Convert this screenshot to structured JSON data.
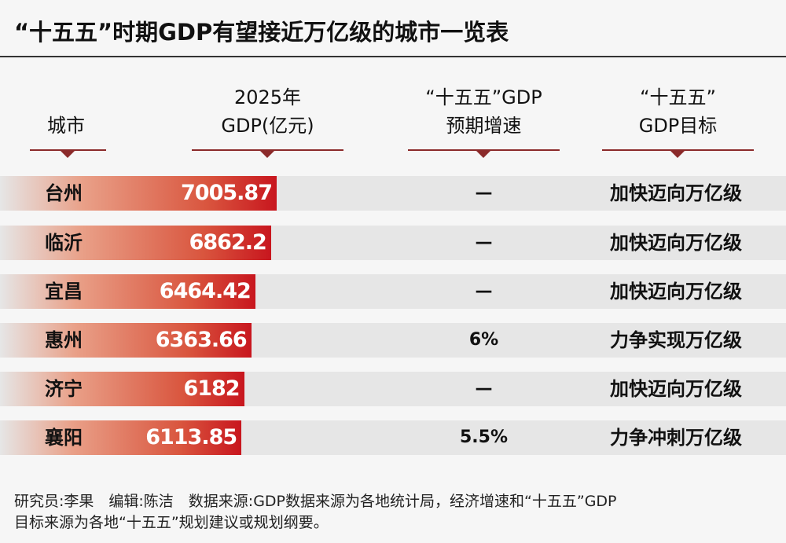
{
  "title": "“十五五”时期GDP有望接近万亿级的城市一览表",
  "headers": {
    "city": "城市",
    "gdp_line1": "2025年",
    "gdp_line2": "GDP(亿元)",
    "growth_line1": "“十五五”GDP",
    "growth_line2": "预期增速",
    "target_line1": "“十五五”",
    "target_line2": "GDP目标"
  },
  "colors": {
    "bar_end": "#c8161e",
    "bar_start": "#e9a088",
    "header_rule": "#8b2a2a",
    "row_bg": "#e6e6e6"
  },
  "chart_data": {
    "type": "table",
    "columns": [
      "城市",
      "2025年GDP(亿元)",
      "“十五五”GDP预期增速",
      "“十五五”GDP目标"
    ],
    "rows": [
      {
        "city": "台州",
        "gdp": "7005.87",
        "growth": "—",
        "target": "加快迈向万亿级"
      },
      {
        "city": "临沂",
        "gdp": "6862.2",
        "growth": "—",
        "target": "加快迈向万亿级"
      },
      {
        "city": "宜昌",
        "gdp": "6464.42",
        "growth": "—",
        "target": "加快迈向万亿级"
      },
      {
        "city": "惠州",
        "gdp": "6363.66",
        "growth": "6%",
        "target": "力争实现万亿级"
      },
      {
        "city": "济宁",
        "gdp": "6182",
        "growth": "—",
        "target": "加快迈向万亿级"
      },
      {
        "city": "襄阳",
        "gdp": "6113.85",
        "growth": "5.5%",
        "target": "力争冲刺万亿级"
      }
    ]
  },
  "footer": {
    "line1": "研究员:李果　编辑:陈洁　数据来源:GDP数据来源为各地统计局，经济增速和“十五五”GDP",
    "line2": "目标来源为各地“十五五”规划建议或规划纲要。"
  }
}
